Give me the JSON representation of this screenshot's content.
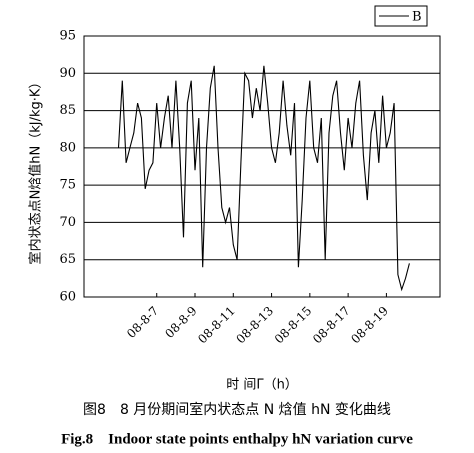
{
  "chart_data": {
    "type": "line",
    "y_label": "室内状态点N焓值hN（kJ/kg·K）",
    "x_label": "时 间Γ（h）",
    "caption": "图8　8 月份期间室内状态点 N 焓值 hN 变化曲线",
    "caption_en": "Fig.8　Indoor state points enthalpy hN variation curve",
    "legend": "upper right",
    "grid": true,
    "x": [
      5.0,
      5.2,
      5.4,
      5.6,
      5.8,
      6.0,
      6.2,
      6.4,
      6.6,
      6.8,
      7.0,
      7.2,
      7.4,
      7.6,
      7.8,
      8.0,
      8.2,
      8.4,
      8.6,
      8.8,
      9.0,
      9.2,
      9.4,
      9.6,
      9.8,
      10.0,
      10.2,
      10.4,
      10.6,
      10.8,
      11.0,
      11.2,
      11.4,
      11.6,
      11.8,
      12.0,
      12.2,
      12.4,
      12.6,
      12.8,
      13.0,
      13.2,
      13.4,
      13.6,
      13.8,
      14.0,
      14.2,
      14.4,
      14.6,
      14.8,
      15.0,
      15.2,
      15.4,
      15.6,
      15.8,
      16.0,
      16.2,
      16.4,
      16.6,
      16.8,
      17.0,
      17.2,
      17.4,
      17.6,
      17.8,
      18.0,
      18.2,
      18.4,
      18.6,
      18.8,
      19.0,
      19.2,
      19.4,
      19.6,
      19.8,
      20.0,
      20.2
    ],
    "series": [
      {
        "name": "B",
        "color": "#000000",
        "values": [
          80,
          89,
          78,
          80,
          82,
          86,
          84,
          74.5,
          77,
          78,
          86,
          80,
          84,
          87,
          80,
          89,
          80,
          68,
          86,
          89,
          77,
          84,
          64,
          80,
          88,
          91,
          80,
          72,
          70,
          72,
          67,
          65,
          78,
          90,
          89,
          84,
          88,
          85,
          91,
          86,
          80,
          78,
          82,
          89,
          83,
          79,
          86,
          64,
          73,
          84,
          89,
          80,
          78,
          84,
          65,
          82,
          87,
          89,
          82,
          77,
          84,
          80,
          86,
          89,
          79,
          73,
          82,
          85,
          78,
          87,
          80,
          82,
          86,
          63,
          61,
          62.5,
          64.5
        ]
      }
    ],
    "xlim": [
      3.2,
      21.8
    ],
    "xticks": [
      {
        "value": 7,
        "label": "08-8-7"
      },
      {
        "value": 9,
        "label": "08-8-9"
      },
      {
        "value": 11,
        "label": "08-8-11"
      },
      {
        "value": 13,
        "label": "08-8-13"
      },
      {
        "value": 15,
        "label": "08-8-15"
      },
      {
        "value": 17,
        "label": "08-8-17"
      },
      {
        "value": 19,
        "label": "08-8-19"
      }
    ],
    "ylim": [
      60,
      95
    ],
    "yticks": [
      60,
      65,
      70,
      75,
      80,
      85,
      90,
      95
    ]
  }
}
